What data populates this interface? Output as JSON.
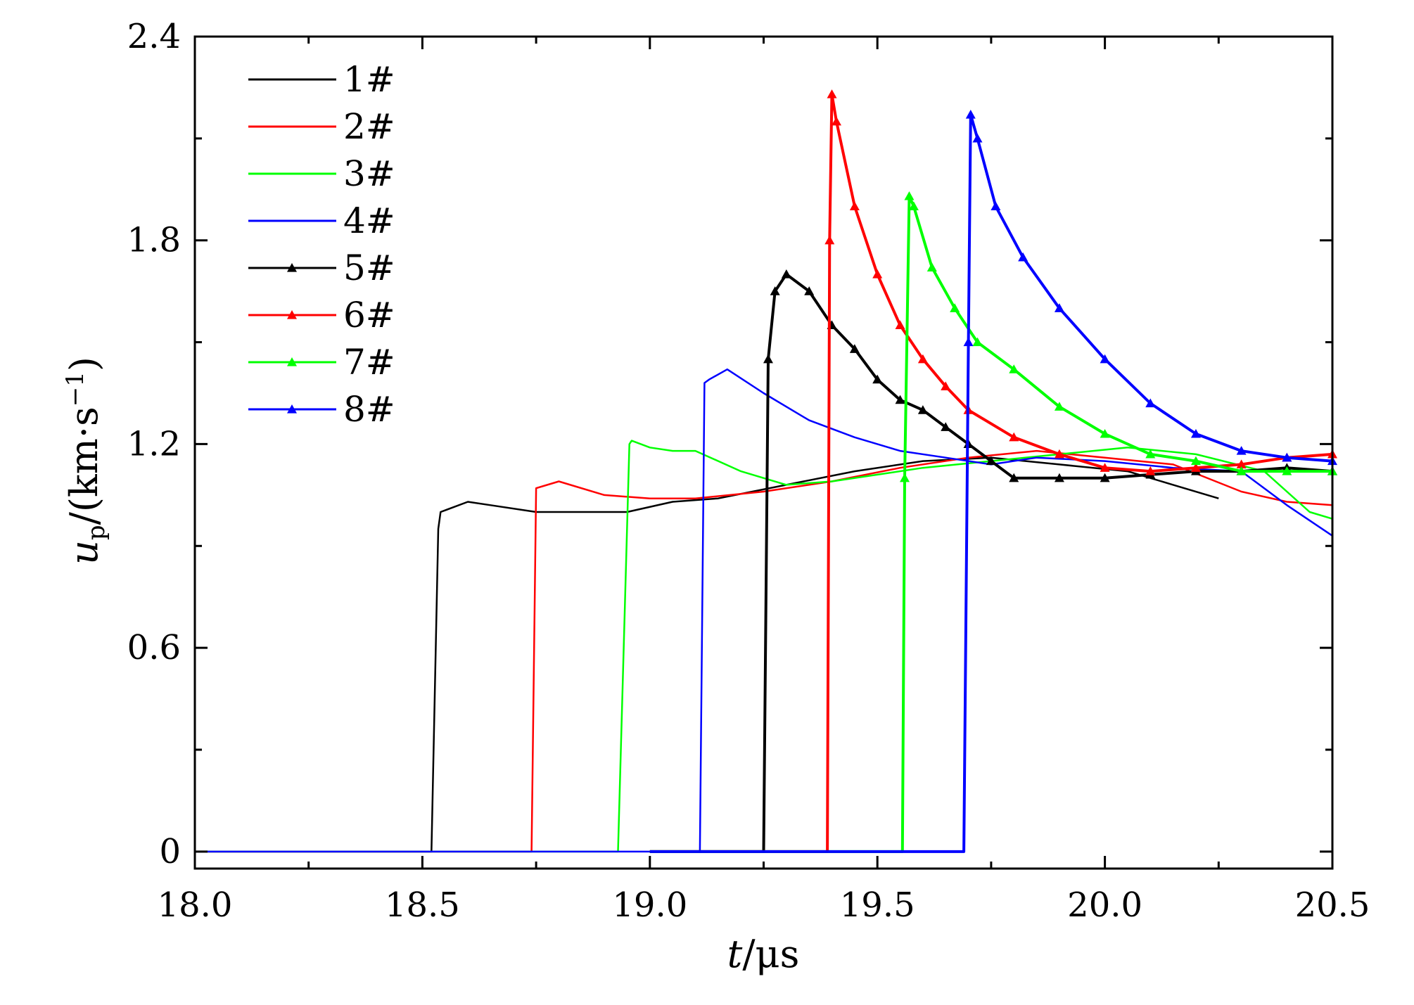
{
  "chart_data": {
    "type": "line",
    "title": "",
    "xlabel": "t/μs",
    "ylabel": "u_p/(km·s^-1)",
    "xlim": [
      18.0,
      20.5
    ],
    "ylim": [
      -0.05,
      2.4
    ],
    "x_ticks": [
      18.0,
      18.5,
      19.0,
      19.5,
      20.0,
      20.5
    ],
    "x_tick_labels": [
      "18.0",
      "18.5",
      "19.0",
      "19.5",
      "20.0",
      "20.5"
    ],
    "y_ticks": [
      0,
      0.6,
      1.2,
      1.8,
      2.4
    ],
    "y_tick_labels": [
      "0",
      "0.6",
      "1.2",
      "1.8",
      "2.4"
    ],
    "legend_placement": "top-left",
    "grid": false,
    "series": [
      {
        "name": "1#",
        "color": "#000000",
        "marker": "none",
        "x": [
          18.0,
          18.52,
          18.535,
          18.54,
          18.6,
          18.65,
          18.75,
          18.85,
          18.95,
          19.05,
          19.15,
          19.3,
          19.45,
          19.6,
          19.75,
          19.9,
          20.05,
          20.15,
          20.25
        ],
        "y": [
          0,
          0,
          0.95,
          1.0,
          1.03,
          1.02,
          1.0,
          1.0,
          1.0,
          1.03,
          1.04,
          1.08,
          1.12,
          1.15,
          1.16,
          1.14,
          1.12,
          1.08,
          1.04
        ]
      },
      {
        "name": "2#",
        "color": "#ff0000",
        "marker": "none",
        "x": [
          18.0,
          18.74,
          18.75,
          18.8,
          18.9,
          19.0,
          19.1,
          19.25,
          19.4,
          19.55,
          19.7,
          19.85,
          20.0,
          20.15,
          20.3,
          20.4,
          20.5
        ],
        "y": [
          0,
          0,
          1.07,
          1.09,
          1.05,
          1.04,
          1.04,
          1.06,
          1.09,
          1.13,
          1.16,
          1.18,
          1.16,
          1.14,
          1.06,
          1.03,
          1.02
        ]
      },
      {
        "name": "3#",
        "color": "#00ff00",
        "marker": "none",
        "x": [
          18.0,
          18.93,
          18.955,
          18.96,
          19.0,
          19.05,
          19.1,
          19.2,
          19.3,
          19.4,
          19.5,
          19.6,
          19.75,
          19.9,
          20.05,
          20.2,
          20.35,
          20.45,
          20.5
        ],
        "y": [
          0,
          0,
          1.2,
          1.21,
          1.19,
          1.18,
          1.18,
          1.12,
          1.08,
          1.09,
          1.11,
          1.13,
          1.15,
          1.17,
          1.19,
          1.17,
          1.12,
          1.0,
          0.98
        ]
      },
      {
        "name": "4#",
        "color": "#0000ff",
        "marker": "none",
        "x": [
          18.0,
          19.11,
          19.12,
          19.13,
          19.17,
          19.25,
          19.35,
          19.45,
          19.55,
          19.65,
          19.75,
          19.85,
          20.0,
          20.15,
          20.3,
          20.4,
          20.5
        ],
        "y": [
          0,
          0,
          1.38,
          1.39,
          1.42,
          1.35,
          1.27,
          1.22,
          1.18,
          1.16,
          1.14,
          1.16,
          1.15,
          1.13,
          1.12,
          1.02,
          0.93
        ]
      },
      {
        "name": "5#",
        "color": "#000000",
        "marker": "triangle",
        "x": [
          19.0,
          19.25,
          19.26,
          19.275,
          19.3,
          19.35,
          19.4,
          19.45,
          19.5,
          19.55,
          19.6,
          19.65,
          19.7,
          19.75,
          19.8,
          19.9,
          20.0,
          20.1,
          20.2,
          20.3,
          20.4,
          20.5
        ],
        "y": [
          0,
          0,
          1.45,
          1.65,
          1.7,
          1.65,
          1.55,
          1.48,
          1.39,
          1.33,
          1.3,
          1.25,
          1.2,
          1.15,
          1.1,
          1.1,
          1.1,
          1.11,
          1.12,
          1.12,
          1.13,
          1.12
        ]
      },
      {
        "name": "6#",
        "color": "#ff0000",
        "marker": "triangle",
        "x": [
          19.0,
          19.39,
          19.395,
          19.4,
          19.41,
          19.45,
          19.5,
          19.55,
          19.6,
          19.65,
          19.7,
          19.8,
          19.9,
          20.0,
          20.1,
          20.2,
          20.3,
          20.4,
          20.5
        ],
        "y": [
          0,
          0,
          1.8,
          2.23,
          2.15,
          1.9,
          1.7,
          1.55,
          1.45,
          1.37,
          1.3,
          1.22,
          1.17,
          1.13,
          1.12,
          1.13,
          1.14,
          1.16,
          1.17
        ]
      },
      {
        "name": "7#",
        "color": "#00ff00",
        "marker": "triangle",
        "x": [
          19.0,
          19.555,
          19.56,
          19.57,
          19.58,
          19.62,
          19.67,
          19.72,
          19.8,
          19.9,
          20.0,
          20.1,
          20.2,
          20.3,
          20.4,
          20.5
        ],
        "y": [
          0,
          0,
          1.1,
          1.93,
          1.9,
          1.72,
          1.6,
          1.5,
          1.42,
          1.31,
          1.23,
          1.17,
          1.15,
          1.12,
          1.12,
          1.12
        ]
      },
      {
        "name": "8#",
        "color": "#0000ff",
        "marker": "triangle",
        "x": [
          19.0,
          19.69,
          19.7,
          19.705,
          19.72,
          19.76,
          19.82,
          19.9,
          20.0,
          20.1,
          20.2,
          20.3,
          20.4,
          20.5
        ],
        "y": [
          0,
          0,
          1.5,
          2.17,
          2.1,
          1.9,
          1.75,
          1.6,
          1.45,
          1.32,
          1.23,
          1.18,
          1.16,
          1.15
        ]
      }
    ]
  }
}
